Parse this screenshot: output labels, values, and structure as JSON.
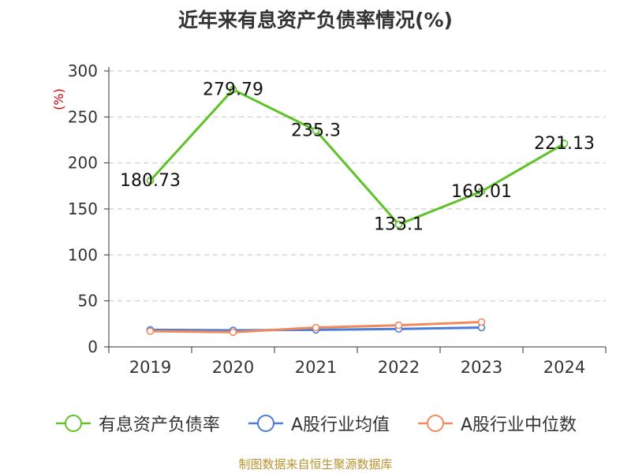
{
  "title": "近年来有息资产负债率情况(%)",
  "source": "制图数据来自恒生聚源数据库",
  "chart_data": {
    "type": "line",
    "categories": [
      "2019",
      "2020",
      "2021",
      "2022",
      "2023",
      "2024"
    ],
    "ylabel": "(%)",
    "ylim": [
      0,
      300
    ],
    "yticks": [
      0,
      50,
      100,
      150,
      200,
      250,
      300
    ],
    "grid": true,
    "legend_position": "bottom",
    "series": [
      {
        "name": "有息资产负债率",
        "color": "#5ec228",
        "values": [
          180.73,
          279.79,
          235.3,
          133.1,
          169.01,
          221.13
        ],
        "labels": [
          "180.73",
          "279.79",
          "235.3",
          "133.1",
          "169.01",
          "221.13"
        ]
      },
      {
        "name": "A股行业均值",
        "color": "#4a7dd7",
        "values": [
          18.5,
          18.0,
          18.5,
          19.5,
          21.0,
          null
        ]
      },
      {
        "name": "A股行业中位数",
        "color": "#f08a5d",
        "values": [
          17.0,
          16.0,
          21.0,
          23.5,
          27.0,
          null
        ]
      }
    ]
  }
}
